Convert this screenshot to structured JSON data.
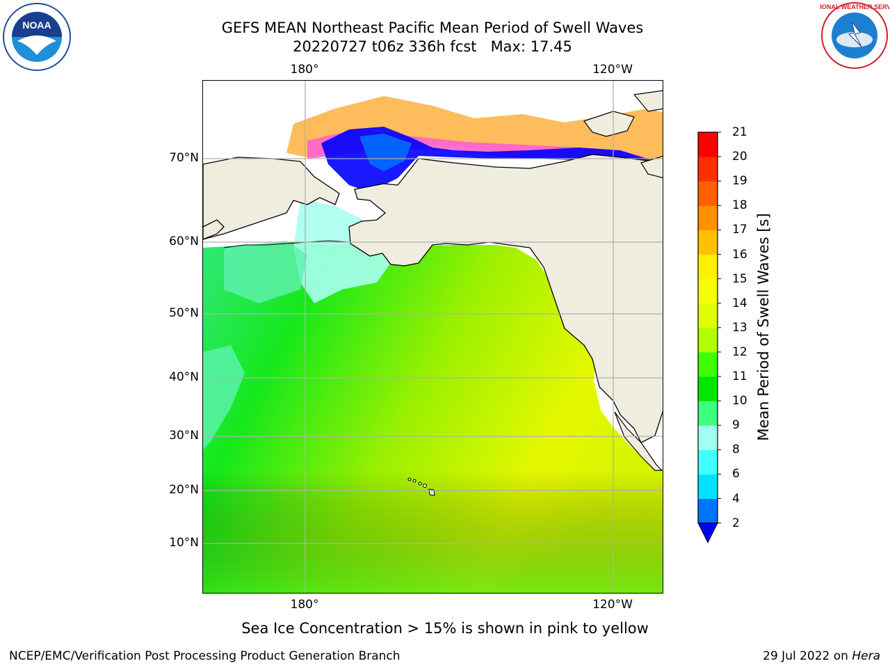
{
  "title": {
    "line1": "GEFS MEAN Northeast Pacific Mean Period of Swell Waves",
    "line2": "20220727 t06z 336h fcst   Max: 17.45"
  },
  "map": {
    "lon_labels_top": [
      "180°",
      "120°W"
    ],
    "lon_labels_bottom": [
      "180°",
      "120°W"
    ],
    "lat_labels": [
      "70°N",
      "60°N",
      "50°N",
      "40°N",
      "30°N",
      "20°N",
      "10°N"
    ],
    "gridlines": true,
    "colors": {
      "land": "#efedde",
      "coastline": "#000000",
      "grid": "#b0b0b0"
    }
  },
  "colorbar": {
    "label": "Mean Period of Swell Waves [s]",
    "ticks": [
      "2",
      "4",
      "6",
      "8",
      "9",
      "10",
      "11",
      "12",
      "13",
      "14",
      "15",
      "16",
      "17",
      "18",
      "19",
      "20",
      "21"
    ],
    "colors": [
      "#0073ff",
      "#00e1ff",
      "#40ffff",
      "#a0fff0",
      "#40ff80",
      "#00e600",
      "#40ff00",
      "#b0ff00",
      "#dfff00",
      "#f5ff00",
      "#fff000",
      "#ffc000",
      "#ff9000",
      "#ff6000",
      "#ff3000",
      "#ff0000"
    ],
    "under_color": "#0000ff",
    "extend": "min"
  },
  "ice_note": "Sea Ice Concentration > 15% is shown in pink to yellow",
  "footer": {
    "left": "NCEP/EMC/Verification Post Processing Product Generation Branch",
    "right_prefix": "29 Jul 2022 on ",
    "right_machine": "Hera"
  },
  "logos": {
    "noaa_text": "NOAA",
    "nws_text": "NATIONAL WEATHER SERVICE"
  }
}
